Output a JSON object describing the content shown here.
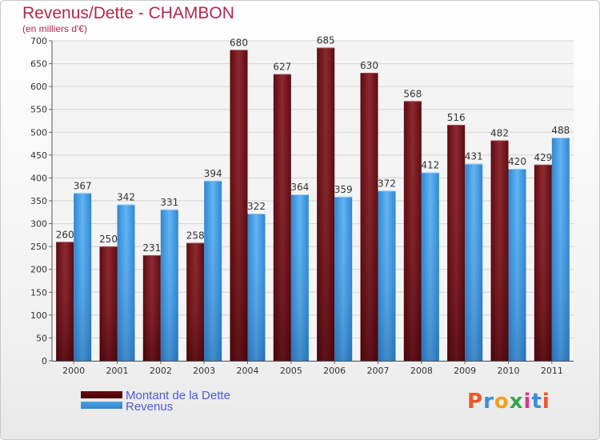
{
  "header": {
    "title": "Revenus/Dette - CHAMBON",
    "subtitle": "(en milliers d'€)"
  },
  "chart_data": {
    "type": "bar",
    "categories": [
      "2000",
      "2001",
      "2002",
      "2003",
      "2004",
      "2005",
      "2006",
      "2007",
      "2008",
      "2009",
      "2010",
      "2011"
    ],
    "series": [
      {
        "name": "Montant de la Dette",
        "color": "#7a1a22",
        "values": [
          260,
          250,
          231,
          258,
          680,
          627,
          685,
          630,
          568,
          516,
          482,
          429
        ]
      },
      {
        "name": "Revenus",
        "color": "#4aa0e6",
        "values": [
          367,
          342,
          331,
          394,
          322,
          364,
          359,
          372,
          412,
          431,
          420,
          488
        ]
      }
    ],
    "ylim": [
      0,
      700
    ],
    "yticks": [
      0,
      50,
      100,
      150,
      200,
      250,
      300,
      350,
      400,
      450,
      500,
      550,
      600,
      650,
      700
    ],
    "xlabel": "",
    "ylabel": "",
    "grid": true,
    "legend_position": "bottom-left"
  },
  "legend": {
    "debt_label": "Montant de la Dette",
    "revenue_label": "Revenus",
    "debt_color": "#6a0e14",
    "revenue_color": "#4aa0e6"
  },
  "logo": {
    "text": "Proxiti",
    "colors": [
      "#e8582a",
      "#3a8fd8",
      "#f0a020",
      "#3aa64a",
      "#d83a8a",
      "#3a8fd8",
      "#e8582a"
    ]
  }
}
